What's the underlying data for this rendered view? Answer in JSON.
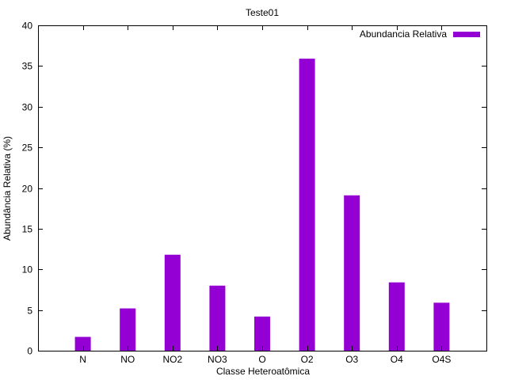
{
  "chart_data": {
    "type": "bar",
    "title": "Teste01",
    "xlabel": "Classe Heteroatômica",
    "ylabel": "Abundância Relativa (%)",
    "ylim": [
      0,
      40
    ],
    "yticks": [
      0,
      5,
      10,
      15,
      20,
      25,
      30,
      35,
      40
    ],
    "categories": [
      "N",
      "NO",
      "NO2",
      "NO3",
      "O",
      "O2",
      "O3",
      "O4",
      "O4S"
    ],
    "series": [
      {
        "name": "Abundancia Relativa",
        "color": "#9400d3",
        "values": [
          1.7,
          5.2,
          11.8,
          8.0,
          4.2,
          35.9,
          19.1,
          8.4,
          5.9
        ]
      }
    ],
    "legend_position": "top-right",
    "grid": false
  }
}
